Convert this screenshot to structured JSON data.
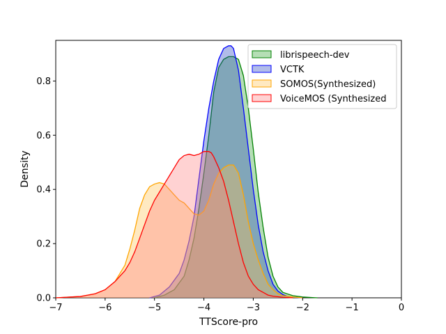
{
  "chart_data": {
    "type": "area",
    "title": "",
    "xlabel": "TTScore-pro",
    "ylabel": "Density",
    "xlim": [
      -7,
      0
    ],
    "ylim": [
      0,
      0.95
    ],
    "xticks": [
      -7,
      -6,
      -5,
      -4,
      -3,
      -2,
      -1,
      0
    ],
    "xtick_labels": [
      "−7",
      "−6",
      "−5",
      "−4",
      "−3",
      "−2",
      "−1",
      "0"
    ],
    "yticks": [
      0.0,
      0.2,
      0.4,
      0.6,
      0.8
    ],
    "ytick_labels": [
      "0.0",
      "0.2",
      "0.4",
      "0.6",
      "0.8"
    ],
    "grid": false,
    "legend_position": "top-right",
    "series": [
      {
        "name": "librispeech-dev",
        "color": "#008000",
        "fill": "#2ca02c",
        "x": [
          -5.0,
          -4.8,
          -4.6,
          -4.4,
          -4.3,
          -4.2,
          -4.1,
          -4.0,
          -3.9,
          -3.8,
          -3.7,
          -3.6,
          -3.5,
          -3.4,
          -3.3,
          -3.2,
          -3.1,
          -3.0,
          -2.9,
          -2.8,
          -2.7,
          -2.6,
          -2.5,
          -2.4,
          -2.2,
          -2.0,
          -1.8,
          -1.7
        ],
        "y": [
          0.0,
          0.01,
          0.03,
          0.08,
          0.14,
          0.22,
          0.33,
          0.46,
          0.6,
          0.76,
          0.85,
          0.88,
          0.89,
          0.89,
          0.88,
          0.82,
          0.7,
          0.55,
          0.39,
          0.26,
          0.15,
          0.08,
          0.04,
          0.02,
          0.008,
          0.003,
          0.001,
          0.0
        ]
      },
      {
        "name": "VCTK",
        "color": "#0000ff",
        "fill": "#1f3fbf",
        "x": [
          -5.1,
          -4.9,
          -4.7,
          -4.5,
          -4.4,
          -4.3,
          -4.2,
          -4.1,
          -4.0,
          -3.9,
          -3.8,
          -3.7,
          -3.6,
          -3.5,
          -3.45,
          -3.4,
          -3.3,
          -3.2,
          -3.1,
          -3.0,
          -2.9,
          -2.8,
          -2.7,
          -2.6,
          -2.5,
          -2.4,
          -2.3,
          -2.2,
          -2.0
        ],
        "y": [
          0.0,
          0.01,
          0.04,
          0.09,
          0.14,
          0.21,
          0.3,
          0.44,
          0.58,
          0.7,
          0.8,
          0.88,
          0.92,
          0.93,
          0.93,
          0.92,
          0.84,
          0.7,
          0.55,
          0.4,
          0.27,
          0.17,
          0.1,
          0.05,
          0.025,
          0.012,
          0.005,
          0.002,
          0.0
        ]
      },
      {
        "name": "SOMOS(Synthesized)",
        "color": "#ffa500",
        "fill": "#ffc04d",
        "x": [
          -7.0,
          -6.5,
          -6.2,
          -6.0,
          -5.8,
          -5.6,
          -5.5,
          -5.4,
          -5.3,
          -5.2,
          -5.1,
          -5.0,
          -4.9,
          -4.8,
          -4.7,
          -4.6,
          -4.5,
          -4.4,
          -4.3,
          -4.2,
          -4.1,
          -4.0,
          -3.9,
          -3.8,
          -3.7,
          -3.6,
          -3.5,
          -3.4,
          -3.3,
          -3.2,
          -3.1,
          -3.0,
          -2.9,
          -2.8,
          -2.7,
          -2.6,
          -2.5,
          -2.4,
          -2.2,
          -2.0
        ],
        "y": [
          0.0,
          0.005,
          0.015,
          0.03,
          0.06,
          0.12,
          0.18,
          0.25,
          0.33,
          0.38,
          0.41,
          0.42,
          0.425,
          0.42,
          0.4,
          0.38,
          0.36,
          0.35,
          0.33,
          0.31,
          0.305,
          0.32,
          0.36,
          0.42,
          0.46,
          0.48,
          0.49,
          0.49,
          0.46,
          0.38,
          0.28,
          0.2,
          0.14,
          0.09,
          0.05,
          0.03,
          0.015,
          0.008,
          0.003,
          0.0
        ]
      },
      {
        "name": "VoiceMOS (Synthesized",
        "color": "#ff0000",
        "fill": "#ff7f7f",
        "x": [
          -7.0,
          -6.5,
          -6.2,
          -6.0,
          -5.8,
          -5.6,
          -5.5,
          -5.4,
          -5.3,
          -5.2,
          -5.1,
          -5.0,
          -4.9,
          -4.8,
          -4.7,
          -4.6,
          -4.5,
          -4.4,
          -4.3,
          -4.2,
          -4.1,
          -4.0,
          -3.9,
          -3.85,
          -3.8,
          -3.7,
          -3.6,
          -3.5,
          -3.4,
          -3.3,
          -3.2,
          -3.1,
          -3.0,
          -2.9,
          -2.8,
          -2.7,
          -2.6,
          -2.4,
          -2.2
        ],
        "y": [
          0.0,
          0.005,
          0.015,
          0.03,
          0.06,
          0.1,
          0.13,
          0.17,
          0.22,
          0.27,
          0.32,
          0.36,
          0.39,
          0.42,
          0.45,
          0.48,
          0.51,
          0.525,
          0.53,
          0.525,
          0.53,
          0.54,
          0.54,
          0.535,
          0.52,
          0.48,
          0.43,
          0.36,
          0.28,
          0.2,
          0.13,
          0.08,
          0.05,
          0.03,
          0.02,
          0.01,
          0.006,
          0.002,
          0.0
        ]
      }
    ]
  }
}
